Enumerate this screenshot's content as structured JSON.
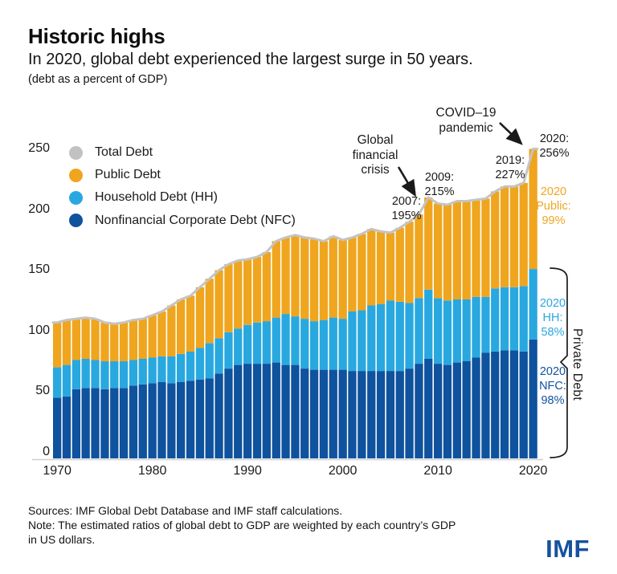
{
  "header": {
    "title": "Historic highs",
    "subtitle": "In 2020, global debt experienced the largest surge in 50 years.",
    "unit_note": "(debt as a percent of GDP)"
  },
  "legend": {
    "items": [
      {
        "key": "total",
        "label": "Total Debt",
        "color": "#C2C2C2"
      },
      {
        "key": "public",
        "label": "Public Debt",
        "color": "#EFA51E"
      },
      {
        "key": "hh",
        "label": "Household Debt (HH)",
        "color": "#29A8E0"
      },
      {
        "key": "nfc",
        "label": "Nonfinancial Corporate Debt (NFC)",
        "color": "#0F529E"
      }
    ]
  },
  "chart_data": {
    "type": "bar",
    "stacked": true,
    "title": "Historic highs",
    "unit": "debt as a percent of GDP",
    "grid": false,
    "legend_position": "top-left",
    "ylim": [
      0,
      260
    ],
    "yticks": [
      0,
      50,
      100,
      150,
      200,
      250
    ],
    "xticks": [
      1970,
      1980,
      1990,
      2000,
      2010,
      2020
    ],
    "years": [
      1970,
      1971,
      1972,
      1973,
      1974,
      1975,
      1976,
      1977,
      1978,
      1979,
      1980,
      1981,
      1982,
      1983,
      1984,
      1985,
      1986,
      1987,
      1988,
      1989,
      1990,
      1991,
      1992,
      1993,
      1994,
      1995,
      1996,
      1997,
      1998,
      1999,
      2000,
      2001,
      2002,
      2003,
      2004,
      2005,
      2006,
      2007,
      2008,
      2009,
      2010,
      2011,
      2012,
      2013,
      2014,
      2015,
      2016,
      2017,
      2018,
      2019,
      2020
    ],
    "series": [
      {
        "key": "nfc",
        "name": "Nonfinancial Corporate Debt (NFC)",
        "color": "#0F529E",
        "values": [
          50,
          51,
          57,
          58,
          58,
          57,
          58,
          58,
          60,
          61,
          62,
          63,
          62,
          63,
          64,
          65,
          66,
          70,
          74,
          77,
          78,
          78,
          78,
          79,
          77,
          77,
          74,
          73,
          73,
          73,
          73,
          72,
          72,
          72,
          72,
          72,
          72,
          74,
          78,
          82,
          78,
          77,
          79,
          80,
          83,
          87,
          88,
          89,
          89,
          88,
          98
        ]
      },
      {
        "key": "hh",
        "name": "Household Debt (HH)",
        "color": "#29A8E0",
        "values": [
          25,
          26,
          24,
          24,
          23,
          23,
          22,
          22,
          21,
          21,
          21,
          21,
          22,
          23,
          24,
          26,
          29,
          29,
          30,
          30,
          32,
          34,
          35,
          37,
          42,
          40,
          41,
          40,
          41,
          43,
          42,
          49,
          50,
          54,
          55,
          58,
          57,
          54,
          54,
          57,
          54,
          53,
          52,
          51,
          50,
          46,
          52,
          52,
          52,
          54,
          58
        ]
      },
      {
        "key": "public",
        "name": "Public Debt",
        "color": "#EFA51E",
        "values": [
          37,
          37,
          34,
          34,
          34,
          32,
          31,
          32,
          33,
          33,
          35,
          37,
          42,
          45,
          46,
          50,
          53,
          56,
          56,
          56,
          54,
          54,
          57,
          63,
          63,
          67,
          67,
          68,
          65,
          67,
          65,
          61,
          63,
          63,
          60,
          56,
          61,
          67,
          69,
          76,
          78,
          79,
          81,
          81,
          80,
          81,
          80,
          83,
          83,
          85,
          99
        ]
      }
    ],
    "total_line": {
      "name": "Total Debt",
      "color": "#C4C4C4"
    },
    "callouts": [
      {
        "year": 2007,
        "label": "2007: 195%"
      },
      {
        "year": 2009,
        "label": "2009: 215%"
      },
      {
        "year": 2019,
        "label": "2019: 227%"
      },
      {
        "year": 2020,
        "label": "2020: 256%"
      },
      {
        "year": 2020,
        "component": "Public",
        "value": "99%"
      },
      {
        "year": 2020,
        "component": "HH",
        "value": "58%"
      },
      {
        "year": 2020,
        "component": "NFC",
        "value": "98%"
      }
    ]
  },
  "annotations": {
    "covid": "COVID–19\npandemic",
    "gfc": "Global\nfinancial\ncrisis",
    "y2007": "2007:\n195%",
    "y2009": "2009:\n215%",
    "y2019": "2019:\n227%",
    "y2020": "2020:\n256%",
    "public2020": "2020\nPublic:\n99%",
    "hh2020": "2020\nHH:\n58%",
    "nfc2020": "2020\nNFC:\n98%",
    "private_debt": "Private Debt"
  },
  "footer": {
    "sources": "Sources: IMF Global Debt Database and IMF staff calculations.",
    "note": "Note: The estimated ratios of global debt to GDP are weighted by each country’s GDP\nin US dollars.",
    "logo": "IMF"
  }
}
